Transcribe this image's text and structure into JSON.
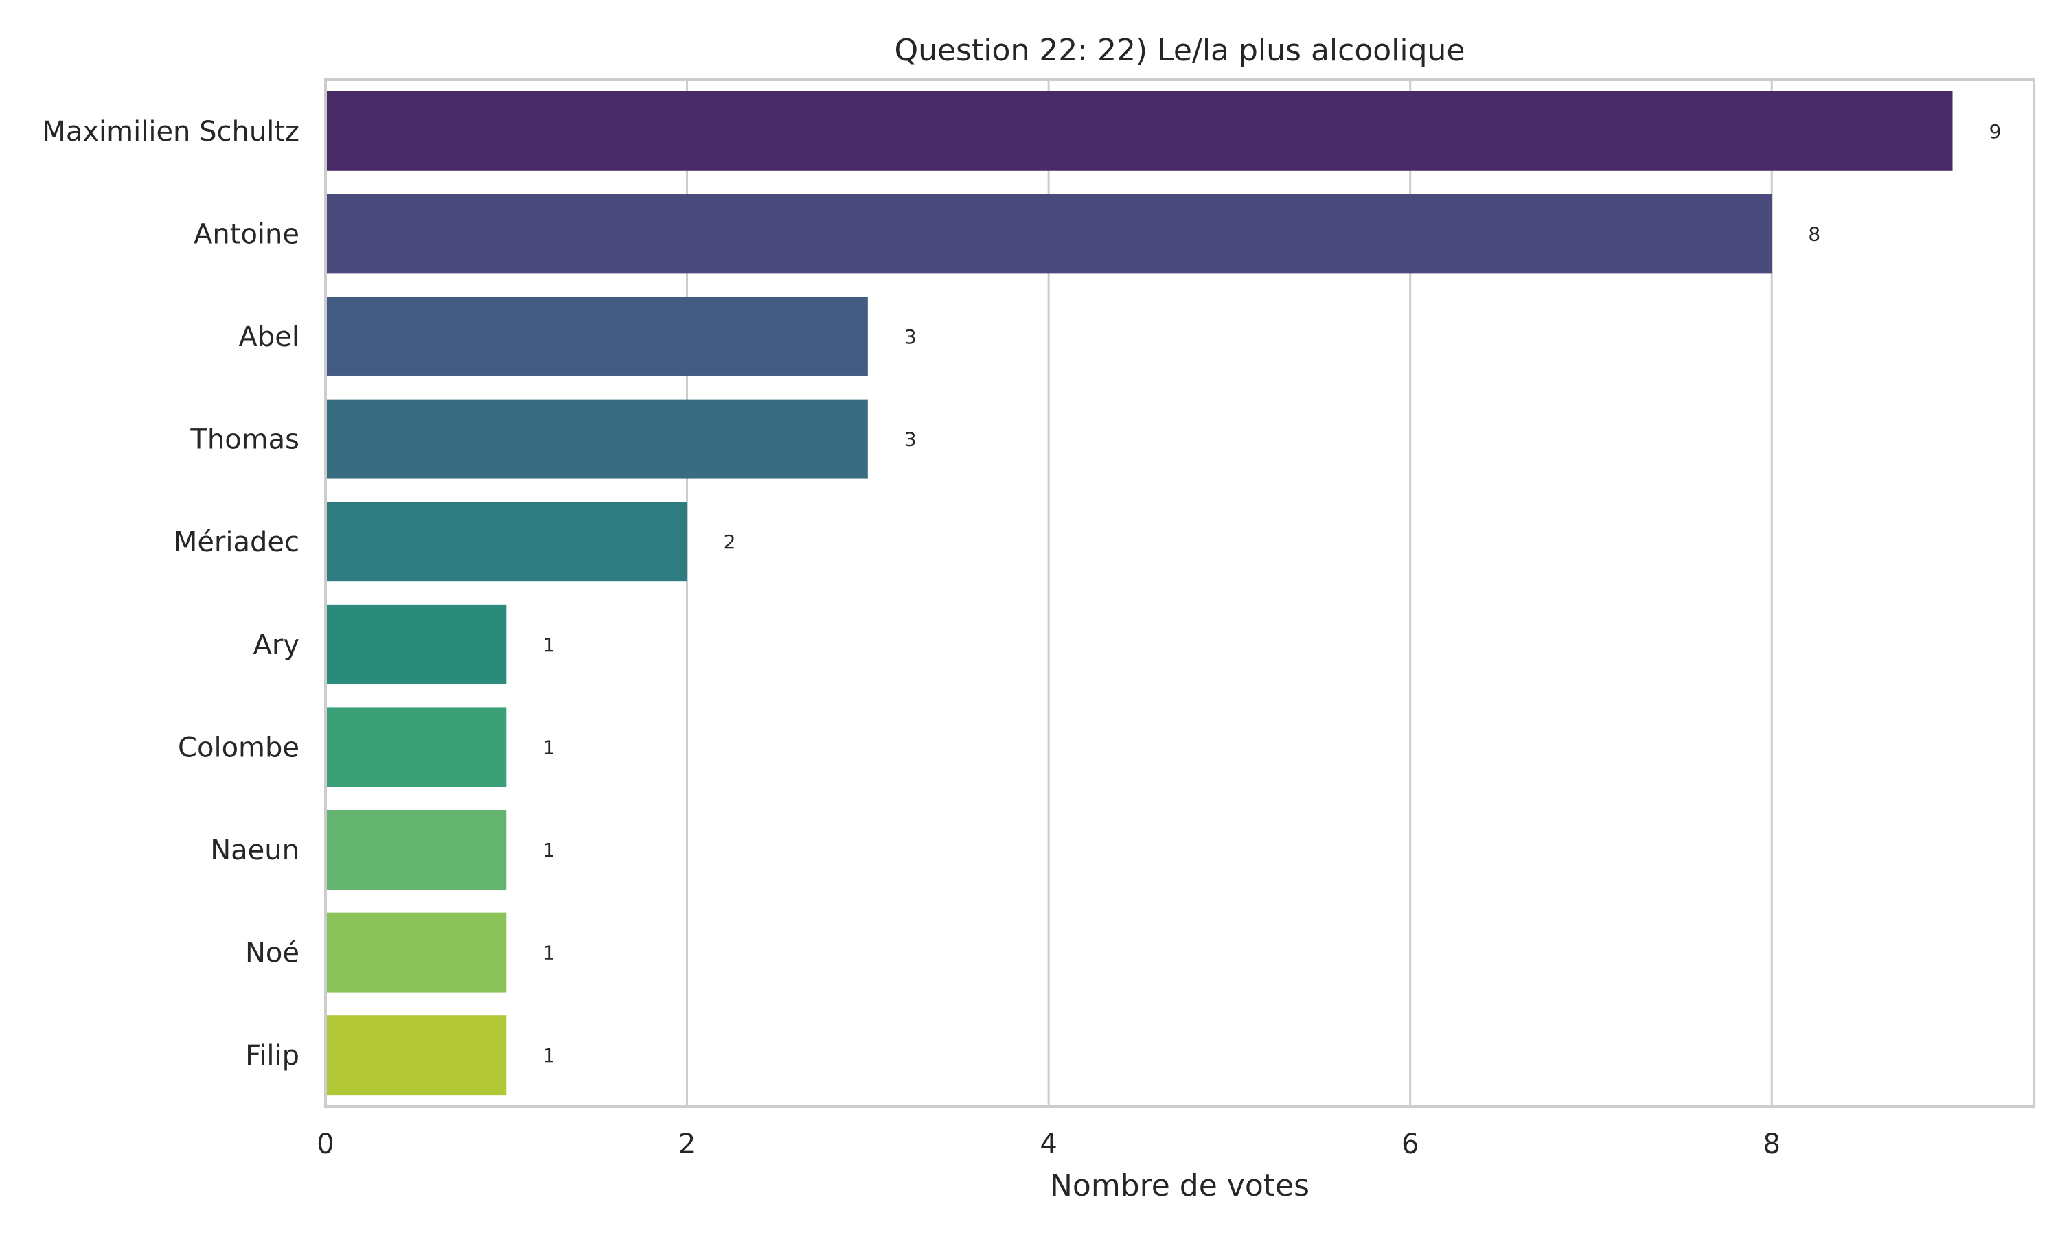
{
  "chart_data": {
    "type": "bar",
    "orientation": "horizontal",
    "title": "Question 22: 22) Le/la plus alcoolique",
    "xlabel": "Nombre de votes",
    "ylabel": "",
    "categories": [
      "Maximilien Schultz",
      "Antoine",
      "Abel",
      "Thomas",
      "Mériadec",
      "Ary",
      "Colombe",
      "Naeun",
      "Noé",
      "Filip"
    ],
    "values": [
      9,
      8,
      3,
      3,
      2,
      1,
      1,
      1,
      1,
      1
    ],
    "colors": [
      "#482a67",
      "#4a4a7c",
      "#435c82",
      "#396c80",
      "#2e7b80",
      "#2a8b7b",
      "#3b9f78",
      "#62b46f",
      "#8bc35b",
      "#b2c836"
    ],
    "xlim": [
      0,
      9.45
    ],
    "xticks": [
      0,
      2,
      4,
      6,
      8
    ],
    "grid": true,
    "data_labels": true
  }
}
